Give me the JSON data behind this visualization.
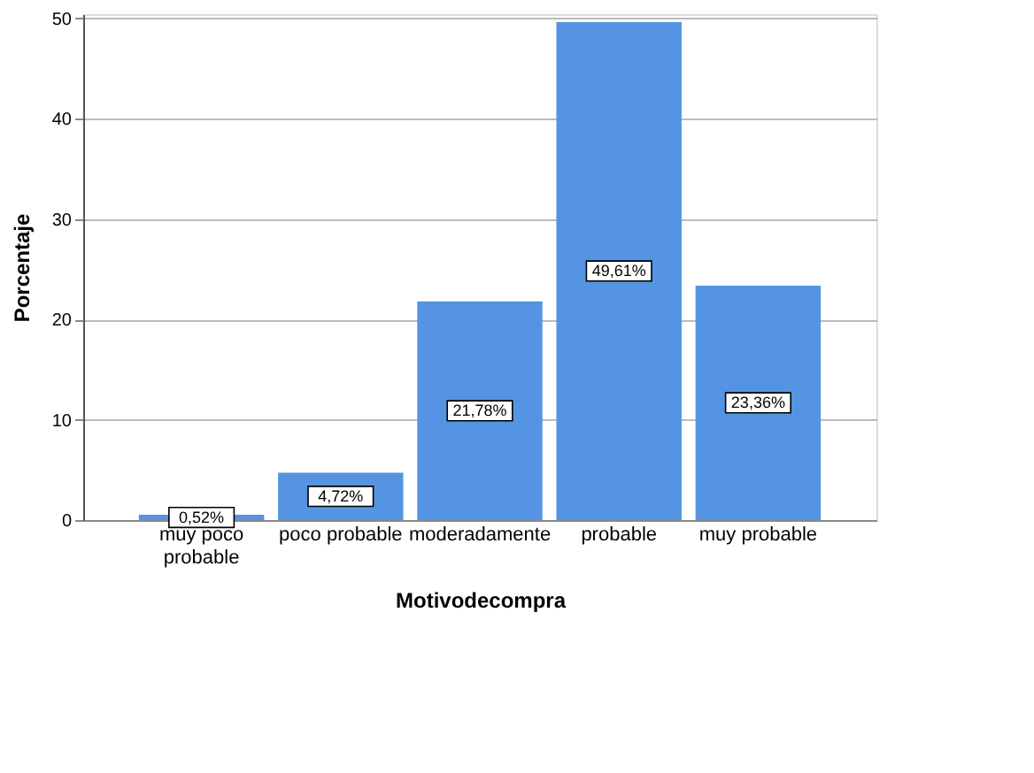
{
  "chart_data": {
    "type": "bar",
    "xlabel": "Motivodecompra",
    "ylabel": "Porcentaje",
    "categories": [
      "muy poco probable",
      "poco probable",
      "moderadamente",
      "probable",
      "muy probable"
    ],
    "values": [
      0.52,
      4.72,
      21.78,
      49.61,
      23.36
    ],
    "value_labels": [
      "0,52%",
      "4,72%",
      "21,78%",
      "49,61%",
      "23,36%"
    ],
    "color": "#5594e2",
    "ylim": [
      0,
      50.4
    ],
    "yticks": [
      0,
      10,
      20,
      30,
      40,
      50
    ],
    "grid": "y"
  }
}
